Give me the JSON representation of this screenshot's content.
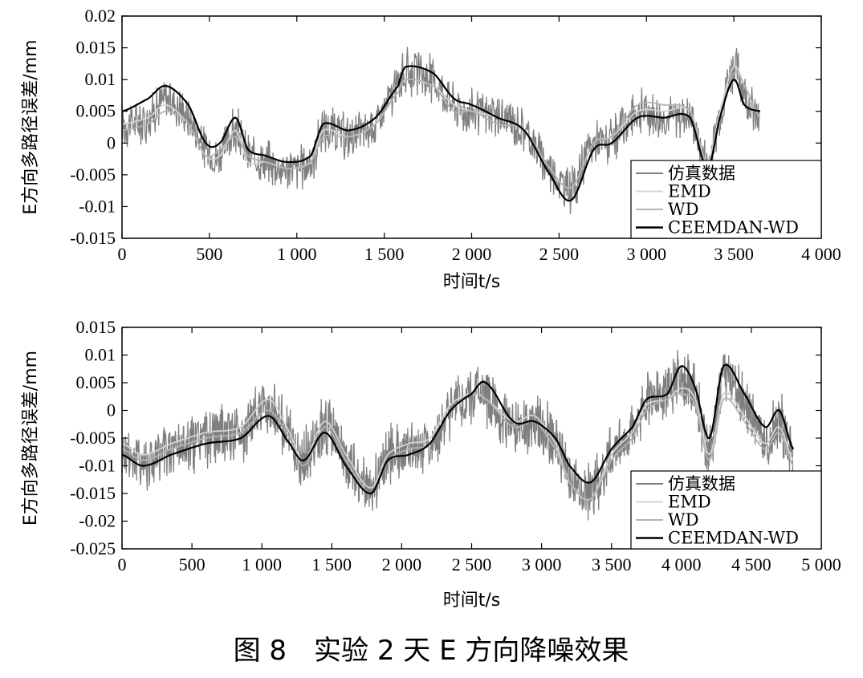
{
  "figure": {
    "caption": "图 8　实验 2 天 E 方向降噪效果"
  },
  "chart_data": [
    {
      "type": "line",
      "xlabel": "时间t/s",
      "ylabel": "E方向多路径误差/mm",
      "xlim": [
        0,
        4000
      ],
      "ylim": [
        -0.015,
        0.02
      ],
      "x_ticks": [
        0,
        500,
        1000,
        1500,
        2000,
        2500,
        3000,
        3500,
        4000
      ],
      "x_tick_labels": [
        "0",
        "500",
        "1 000",
        "1 500",
        "2 000",
        "2 500",
        "3 000",
        "3 500",
        "4 000"
      ],
      "y_ticks": [
        -0.015,
        -0.01,
        -0.005,
        0,
        0.005,
        0.01,
        0.015,
        0.02
      ],
      "y_tick_labels": [
        "-0.015",
        "-0.01",
        "-0.005",
        "0",
        "0.005",
        "0.01",
        "0.015",
        "0.02"
      ],
      "legend_position": "bottom-right",
      "grid": false,
      "x": [
        0,
        150,
        250,
        380,
        480,
        560,
        650,
        720,
        820,
        950,
        1080,
        1150,
        1300,
        1450,
        1580,
        1620,
        1780,
        1900,
        2000,
        2150,
        2300,
        2450,
        2570,
        2700,
        2800,
        2950,
        3100,
        3250,
        3350,
        3420,
        3500,
        3560,
        3650
      ],
      "series": [
        {
          "name": "仿真数据",
          "color": "#7f7f7f",
          "noise": 0.003,
          "values": [
            0.003,
            0.004,
            0.007,
            0.004,
            -0.001,
            -0.002,
            0.002,
            -0.002,
            -0.003,
            -0.004,
            -0.003,
            0.002,
            0.001,
            0.003,
            0.009,
            0.011,
            0.01,
            0.006,
            0.005,
            0.004,
            0.002,
            -0.004,
            -0.007,
            0.0,
            0.0,
            0.005,
            0.004,
            0.004,
            -0.003,
            0.005,
            0.012,
            0.008,
            0.003
          ]
        },
        {
          "name": "EMD",
          "color": "#d4d4d4",
          "values": [
            0.003,
            0.004,
            0.006,
            0.003,
            -0.002,
            -0.002,
            0.002,
            -0.003,
            -0.003,
            -0.004,
            -0.003,
            0.002,
            0.001,
            0.003,
            0.008,
            0.01,
            0.009,
            0.006,
            0.005,
            0.004,
            0.002,
            -0.004,
            -0.007,
            0.0,
            0.001,
            0.005,
            0.005,
            0.005,
            -0.003,
            0.005,
            0.012,
            0.009,
            0.004
          ]
        },
        {
          "name": "WD",
          "color": "#b4b4b4",
          "values": [
            0.002,
            0.003,
            0.005,
            0.003,
            -0.002,
            -0.001,
            0.001,
            -0.002,
            -0.003,
            -0.004,
            -0.003,
            0.001,
            0.001,
            0.003,
            0.008,
            0.01,
            0.009,
            0.005,
            0.005,
            0.003,
            0.002,
            -0.004,
            -0.007,
            0.0,
            0.001,
            0.006,
            0.006,
            0.005,
            -0.003,
            0.004,
            0.011,
            0.009,
            0.004
          ]
        },
        {
          "name": "CEEMDAN-WD",
          "color": "#000000",
          "values": [
            0.005,
            0.007,
            0.009,
            0.006,
            0.0,
            0.0,
            0.004,
            -0.001,
            -0.002,
            -0.003,
            -0.002,
            0.003,
            0.002,
            0.004,
            0.009,
            0.012,
            0.011,
            0.007,
            0.006,
            0.004,
            0.002,
            -0.005,
            -0.009,
            -0.001,
            0.0,
            0.004,
            0.004,
            0.004,
            -0.004,
            0.004,
            0.01,
            0.006,
            0.005
          ]
        }
      ]
    },
    {
      "type": "line",
      "xlabel": "时间t/s",
      "ylabel": "E方向多路径误差/mm",
      "xlim": [
        0,
        5000
      ],
      "ylim": [
        -0.025,
        0.015
      ],
      "x_ticks": [
        0,
        500,
        1000,
        1500,
        2000,
        2500,
        3000,
        3500,
        4000,
        4500,
        5000
      ],
      "x_tick_labels": [
        "0",
        "500",
        "1 000",
        "1 500",
        "2 000",
        "2 500",
        "3 000",
        "3 500",
        "4 000",
        "4 500",
        "5 000"
      ],
      "y_ticks": [
        -0.025,
        -0.02,
        -0.015,
        -0.01,
        -0.005,
        0,
        0.005,
        0.01,
        0.015
      ],
      "y_tick_labels": [
        "-0.025",
        "-0.02",
        "-0.015",
        "-0.01",
        "-0.005",
        "0",
        "0.005",
        "0.01",
        "0.015"
      ],
      "legend_position": "bottom-right",
      "grid": false,
      "x": [
        0,
        150,
        350,
        600,
        850,
        1050,
        1200,
        1300,
        1450,
        1600,
        1780,
        1900,
        2050,
        2200,
        2350,
        2500,
        2600,
        2800,
        2950,
        3100,
        3200,
        3350,
        3500,
        3650,
        3750,
        3900,
        4000,
        4100,
        4200,
        4300,
        4450,
        4600,
        4700,
        4800
      ],
      "series": [
        {
          "name": "仿真数据",
          "color": "#7f7f7f",
          "noise": 0.0045,
          "values": [
            -0.007,
            -0.009,
            -0.007,
            -0.005,
            -0.004,
            0.001,
            -0.005,
            -0.009,
            -0.003,
            -0.009,
            -0.014,
            -0.008,
            -0.007,
            -0.006,
            0.0,
            0.003,
            0.003,
            -0.003,
            -0.002,
            -0.006,
            -0.012,
            -0.015,
            -0.008,
            -0.004,
            0.002,
            0.003,
            0.006,
            0.003,
            -0.007,
            0.006,
            0.001,
            -0.005,
            -0.002,
            -0.008
          ]
        },
        {
          "name": "EMD",
          "color": "#d4d4d4",
          "values": [
            -0.006,
            -0.008,
            -0.006,
            -0.004,
            -0.003,
            0.002,
            -0.004,
            -0.009,
            -0.002,
            -0.008,
            -0.014,
            -0.008,
            -0.006,
            -0.005,
            0.001,
            0.003,
            0.002,
            -0.002,
            -0.001,
            -0.006,
            -0.013,
            -0.016,
            -0.008,
            -0.004,
            0.001,
            0.002,
            0.004,
            0.002,
            -0.008,
            0.003,
            -0.001,
            -0.006,
            -0.003,
            -0.009
          ]
        },
        {
          "name": "WD",
          "color": "#b4b4b4",
          "values": [
            -0.007,
            -0.009,
            -0.007,
            -0.005,
            -0.004,
            0.0,
            -0.005,
            -0.01,
            -0.003,
            -0.009,
            -0.015,
            -0.009,
            -0.007,
            -0.006,
            0.0,
            0.003,
            0.002,
            -0.003,
            -0.002,
            -0.007,
            -0.013,
            -0.016,
            -0.009,
            -0.005,
            0.0,
            0.002,
            0.003,
            0.001,
            -0.009,
            0.002,
            -0.002,
            -0.007,
            -0.004,
            -0.01
          ]
        },
        {
          "name": "CEEMDAN-WD",
          "color": "#000000",
          "values": [
            -0.008,
            -0.01,
            -0.008,
            -0.006,
            -0.005,
            -0.001,
            -0.006,
            -0.009,
            -0.004,
            -0.01,
            -0.015,
            -0.009,
            -0.008,
            -0.006,
            0.0,
            0.003,
            0.005,
            -0.002,
            -0.002,
            -0.005,
            -0.01,
            -0.013,
            -0.007,
            -0.003,
            0.002,
            0.003,
            0.008,
            0.004,
            -0.005,
            0.008,
            0.003,
            -0.003,
            0.0,
            -0.007
          ]
        }
      ]
    }
  ]
}
